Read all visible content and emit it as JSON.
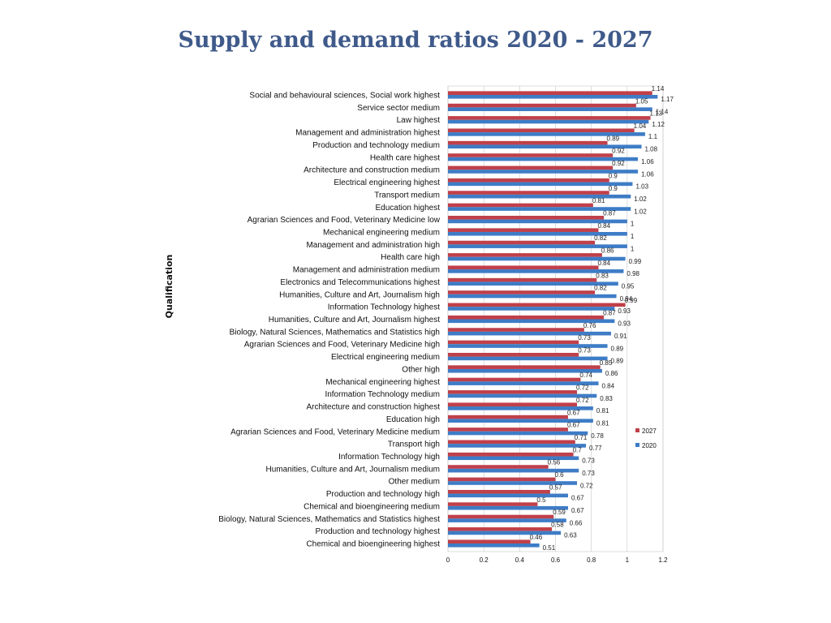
{
  "title": "Supply and demand ratios 2020 - 2027",
  "colors": {
    "s2027": "#c0404a",
    "s2020": "#3e7cc6",
    "grid": "#c8c8c8",
    "title": "#3f5a8a"
  },
  "chart_data": {
    "type": "bar",
    "orientation": "horizontal",
    "ylabel": "Qualification",
    "xlabel": "",
    "xlim": [
      0,
      1.2
    ],
    "xticks": [
      0,
      0.2,
      0.4,
      0.6,
      0.8,
      1,
      1.2
    ],
    "grid": true,
    "legend_position": "right",
    "categories": [
      "Social and behavioural sciences, Social work highest",
      "Service sector medium",
      "Law highest",
      "Management and administration highest",
      "Production and technology medium",
      "Health care highest",
      "Architecture and construction medium",
      "Electrical engineering highest",
      "Transport medium",
      "Education highest",
      "Agrarian Sciences and Food, Veterinary Medicine low",
      "Mechanical engineering medium",
      "Management and administration high",
      "Health care high",
      "Management and administration medium",
      "Electronics and Telecommunications highest",
      "Humanities, Culture and Art, Journalism high",
      "Information Technology highest",
      "Humanities, Culture and Art, Journalism highest",
      "Biology, Natural Sciences, Mathematics and Statistics high",
      "Agrarian Sciences and Food, Veterinary Medicine high",
      "Electrical engineering medium",
      "Other high",
      "Mechanical engineering highest",
      "Information Technology medium",
      "Architecture and construction highest",
      "Education high",
      "Agrarian Sciences and Food, Veterinary Medicine medium",
      "Transport high",
      "Information Technology high",
      "Humanities, Culture and Art, Journalism medium",
      "Other medium",
      "Production and technology high",
      "Chemical and bioengineering medium",
      "Biology, Natural Sciences, Mathematics and Statistics highest",
      "Production and technology highest",
      "Chemical and bioengineering highest"
    ],
    "series": [
      {
        "name": "2027",
        "values": [
          1.14,
          1.05,
          1.13,
          1.04,
          0.89,
          0.92,
          0.92,
          0.9,
          0.9,
          0.81,
          0.87,
          0.84,
          0.82,
          0.86,
          0.84,
          0.83,
          0.82,
          0.99,
          0.87,
          0.76,
          0.73,
          0.73,
          0.85,
          0.74,
          0.72,
          0.72,
          0.67,
          0.67,
          0.71,
          0.7,
          0.56,
          0.6,
          0.57,
          0.5,
          0.59,
          0.58,
          0.46
        ]
      },
      {
        "name": "2020",
        "values": [
          1.17,
          1.14,
          1.12,
          1.1,
          1.08,
          1.06,
          1.06,
          1.03,
          1.02,
          1.02,
          1,
          1,
          1,
          0.99,
          0.98,
          0.95,
          0.94,
          0.93,
          0.93,
          0.91,
          0.89,
          0.89,
          0.86,
          0.84,
          0.83,
          0.81,
          0.81,
          0.78,
          0.77,
          0.73,
          0.73,
          0.72,
          0.67,
          0.67,
          0.66,
          0.63,
          0.51
        ]
      }
    ]
  }
}
